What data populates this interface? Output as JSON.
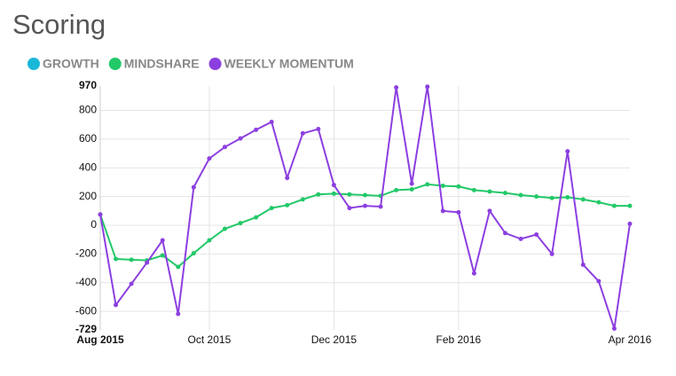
{
  "chart_data": {
    "type": "line",
    "title": "Scoring",
    "categories": [
      "Aug 2015",
      null,
      null,
      null,
      null,
      null,
      null,
      "Oct 2015",
      null,
      null,
      null,
      null,
      null,
      null,
      null,
      "Dec 2015",
      null,
      null,
      null,
      null,
      null,
      null,
      null,
      "Feb 2016",
      null,
      null,
      null,
      null,
      null,
      null,
      null,
      null,
      null,
      null,
      "Apr 2016"
    ],
    "series": [
      {
        "name": "GROWTH",
        "color": "#1ab8d8",
        "values": [
          null,
          null,
          null,
          null,
          null,
          null,
          null,
          null,
          null,
          null,
          null,
          null,
          null,
          null,
          null,
          null,
          null,
          null,
          null,
          null,
          null,
          null,
          null,
          null,
          null,
          null,
          null,
          null,
          null,
          null,
          null,
          null,
          null,
          null,
          null
        ]
      },
      {
        "name": "MINDSHARE",
        "color": "#22c968",
        "values": [
          75,
          -235,
          -240,
          -245,
          -210,
          -290,
          -195,
          -105,
          -25,
          15,
          55,
          120,
          140,
          180,
          215,
          220,
          215,
          210,
          205,
          245,
          250,
          285,
          275,
          270,
          245,
          235,
          225,
          210,
          200,
          190,
          195,
          180,
          160,
          135,
          135
        ]
      },
      {
        "name": "WEEKLY MOMENTUM",
        "color": "#8c3fe0",
        "values": [
          75,
          -555,
          -408,
          -260,
          -105,
          -618,
          265,
          465,
          545,
          605,
          665,
          720,
          330,
          640,
          670,
          280,
          120,
          135,
          130,
          960,
          290,
          965,
          100,
          90,
          -335,
          100,
          -55,
          -95,
          -65,
          -200,
          515,
          -275,
          -390,
          -720,
          10
        ]
      }
    ],
    "ylim": [
      -729,
      970
    ],
    "yticks": [
      -729,
      -600,
      -400,
      -200,
      0,
      200,
      400,
      600,
      800,
      970
    ],
    "grid": true
  }
}
